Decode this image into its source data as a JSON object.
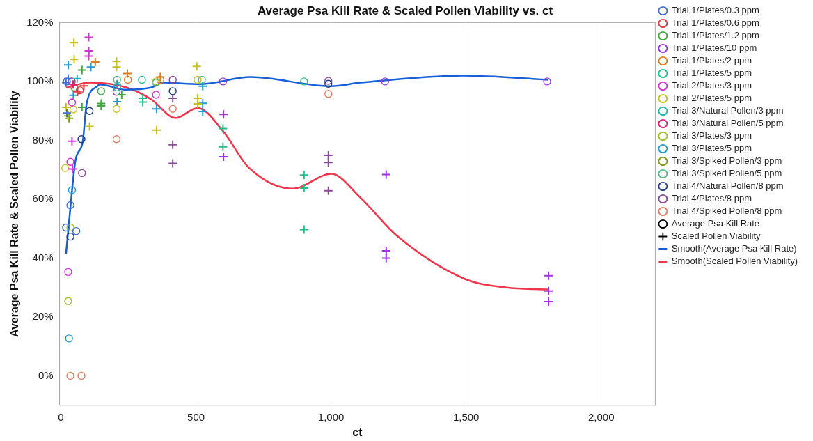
{
  "chart_data": {
    "type": "scatter",
    "title": "Average Psa Kill Rate & Scaled Pollen Viability vs. ct",
    "xlabel": "ct",
    "ylabel": "Average Psa Kill Rate & Scaled Pollen Viability",
    "xlim": [
      -5,
      2200
    ],
    "xticks": [
      0,
      500,
      {
        "value": 1000,
        "label": "1,000"
      },
      {
        "value": 1500,
        "label": "1,500"
      },
      {
        "value": 2000,
        "label": "2,000"
      }
    ],
    "ylim": [
      -10,
      120
    ],
    "yticks": [
      {
        "value": 0,
        "label": "0%"
      },
      {
        "value": 20,
        "label": "20%"
      },
      {
        "value": 40,
        "label": "40%"
      },
      {
        "value": 60,
        "label": "60%"
      },
      {
        "value": 80,
        "label": "80%"
      },
      {
        "value": 100,
        "label": "100%"
      },
      {
        "value": 120,
        "label": "120%"
      }
    ],
    "grid": "x",
    "legend": "right",
    "series": [
      {
        "name": "Trial 1/Plates/0.3 ppm",
        "color": "#3d6fdb",
        "marker": "circle",
        "x": [
          19,
          35,
          57,
          22
        ],
        "values": [
          50.4,
          58,
          49.2,
          100
        ]
      },
      {
        "color": "#3d6fdb",
        "marker": "cross",
        "x": [
          19,
          22,
          27
        ],
        "values": [
          99.6,
          89.3,
          101
        ]
      },
      {
        "name": "Trial 1/Plates/0.6 ppm",
        "color": "#e0393b",
        "marker": "circle",
        "x": [
          70
        ],
        "values": [
          97
        ]
      },
      {
        "color": "#e0393b",
        "marker": "cross",
        "x": [
          62,
          85
        ],
        "values": [
          96.5,
          98.5
        ]
      },
      {
        "name": "Trial 1/Plates/1.2 ppm",
        "color": "#3caa3c",
        "marker": "circle",
        "x": [
          149
        ],
        "values": [
          96.7
        ]
      },
      {
        "color": "#3caa3c",
        "marker": "cross",
        "x": [
          78,
          78,
          149,
          225,
          149
        ],
        "values": [
          103.9,
          91.2,
          91.7,
          95.5,
          92.5
        ]
      },
      {
        "name": "Trial 1/Plates/10 ppm",
        "color": "#9b34e0",
        "marker": "circle",
        "x": [
          600,
          1200,
          1800
        ],
        "values": [
          100,
          100,
          100
        ]
      },
      {
        "color": "#9b34e0",
        "marker": "cross",
        "x": [
          602,
          602,
          1204,
          1204,
          1204,
          1805,
          1805,
          1805
        ],
        "values": [
          88.8,
          74.4,
          68.4,
          42.5,
          40,
          34,
          28.8,
          25.2
        ]
      },
      {
        "name": "Trial 1/Plates/2 ppm",
        "color": "#e07b1c",
        "marker": "circle",
        "x": [
          248,
          368
        ],
        "values": [
          100.6,
          100.6
        ]
      },
      {
        "color": "#e07b1c",
        "marker": "cross",
        "x": [
          127,
          246,
          368
        ],
        "values": [
          106.6,
          102.7,
          101.5
        ]
      },
      {
        "name": "Trial 1/Plates/5 ppm",
        "color": "#20c08a",
        "marker": "circle",
        "x": [
          300,
          900
        ],
        "values": [
          100.6,
          100
        ]
      },
      {
        "color": "#20c08a",
        "marker": "cross",
        "x": [
          303,
          303,
          600,
          600,
          900,
          900,
          900
        ],
        "values": [
          94.3,
          93,
          84,
          77.8,
          68.2,
          63.8,
          49.7
        ]
      },
      {
        "name": "Trial 2/Plates/3 ppm",
        "color": "#d62fd6",
        "marker": "circle",
        "x": [
          35,
          27,
          41,
          352
        ],
        "values": [
          72.7,
          35.3,
          92.9,
          95.5
        ]
      },
      {
        "color": "#d62fd6",
        "marker": "cross",
        "x": [
          103,
          103,
          103,
          41,
          43
        ],
        "values": [
          115,
          110.4,
          108.6,
          79.7,
          70.3
        ]
      },
      {
        "name": "Trial 2/Plates/5 ppm",
        "color": "#c8c020",
        "marker": "circle",
        "x": [
          16,
          206,
          352,
          506,
          46
        ],
        "values": [
          70.6,
          90.7,
          100,
          100.6,
          90.5
        ]
      },
      {
        "color": "#c8c020",
        "marker": "cross",
        "x": [
          48,
          49,
          206,
          206,
          503,
          106,
          354,
          19,
          506,
          506
        ],
        "values": [
          113.2,
          107.5,
          106.8,
          104.9,
          105.1,
          84.7,
          83.5,
          91.2,
          94.3,
          92.4
        ]
      },
      {
        "name": "Trial 3/Natural Pollen/3 ppm",
        "color": "#1fb5b5",
        "marker": "circle",
        "x": [
          208,
          352
        ],
        "values": [
          98,
          99.6
        ]
      },
      {
        "color": "#1fb5b5",
        "marker": "cross",
        "x": [
          60
        ],
        "values": [
          101
        ]
      },
      {
        "name": "Trial 3/Natural Pollen/5 ppm",
        "color": "#e0207e",
        "marker": "circle",
        "x": [
          40
        ],
        "values": [
          100
        ]
      },
      {
        "color": "#e0207e",
        "marker": "cross",
        "x": [
          45
        ],
        "values": [
          99
        ]
      },
      {
        "name": "Trial 3/Plates/3 ppm",
        "color": "#9bc020",
        "marker": "circle",
        "x": [
          27,
          35
        ],
        "values": [
          25.4,
          50.4
        ]
      },
      {
        "color": "#9bc020",
        "marker": "cross",
        "x": [
          27
        ],
        "values": [
          88.3
        ]
      },
      {
        "name": "Trial 3/Plates/5 ppm",
        "color": "#1f9bd0",
        "marker": "circle",
        "x": [
          30,
          41
        ],
        "values": [
          12.7,
          63.1
        ]
      },
      {
        "color": "#1f9bd0",
        "marker": "cross",
        "x": [
          27,
          111,
          46,
          208,
          208,
          354,
          525,
          525,
          525
        ],
        "values": [
          105.6,
          104.9,
          95.3,
          99.1,
          93.1,
          90.7,
          98.4,
          92.6,
          89.8
        ]
      },
      {
        "name": "Trial 3/Spiked Pollen/3 ppm",
        "color": "#7a9a20",
        "marker": "circle",
        "x": [
          50
        ],
        "values": [
          98
        ]
      },
      {
        "color": "#7a9a20",
        "marker": "cross",
        "x": [
          30
        ],
        "values": [
          87.5
        ]
      },
      {
        "name": "Trial 3/Spiked Pollen/5 ppm",
        "color": "#50c080",
        "marker": "circle",
        "x": [
          208,
          522
        ],
        "values": [
          100.6,
          100.6
        ]
      },
      {
        "name": "Trial 4/Natural Pollen/8 ppm",
        "color": "#1f3d80",
        "marker": "circle",
        "x": [
          990,
          414,
          76,
          106,
          35
        ],
        "values": [
          99.2,
          96.7,
          80.4,
          90,
          47.3
        ]
      },
      {
        "name": "Trial 4/Plates/8 ppm",
        "color": "#8a4a9a",
        "marker": "circle",
        "x": [
          990,
          414,
          206,
          78
        ],
        "values": [
          100.2,
          100.6,
          96.5,
          68.9
        ]
      },
      {
        "color": "#8a4a9a",
        "marker": "cross",
        "x": [
          414,
          414,
          414,
          990,
          990,
          990
        ],
        "values": [
          94.3,
          78.5,
          72.2,
          74.9,
          72.5,
          62.9
        ]
      },
      {
        "name": "Trial 4/Spiked Pollen/8 ppm",
        "color": "#e08060",
        "marker": "circle",
        "x": [
          990,
          414,
          206,
          35,
          76
        ],
        "values": [
          95.8,
          90.7,
          80.4,
          0,
          0
        ]
      },
      {
        "name": "Average Psa Kill Rate",
        "color": "#000000",
        "marker": "circle"
      },
      {
        "name": "Scaled Pollen Viability",
        "color": "#000000",
        "marker": "cross"
      },
      {
        "name": "Smooth(Average Psa Kill Rate)",
        "type": "line",
        "color": "#1560d8",
        "marker": "none",
        "x": [
          19,
          35,
          54,
          81,
          95,
          135,
          143,
          189,
          235,
          333,
          379,
          514,
          703,
          998,
          1109,
          1488,
          1805
        ],
        "values": [
          41.5,
          57.1,
          73.2,
          79.7,
          92.4,
          98.4,
          99,
          98.2,
          97.2,
          97.9,
          99.6,
          99.1,
          101.5,
          98.4,
          99.6,
          102,
          100.6
        ]
      },
      {
        "name": "Smooth(Scaled Pollen Viability)",
        "type": "line",
        "color": "#f0354a",
        "marker": "none",
        "x": [
          19,
          108,
          244,
          333,
          425,
          506,
          603,
          695,
          858,
          1001,
          1109,
          1245,
          1496,
          1650,
          1805
        ],
        "values": [
          97.9,
          99.6,
          97.9,
          94,
          87.6,
          91,
          82.8,
          70.8,
          63.6,
          68.6,
          60.5,
          47.5,
          32.9,
          30,
          29.3
        ]
      }
    ]
  }
}
